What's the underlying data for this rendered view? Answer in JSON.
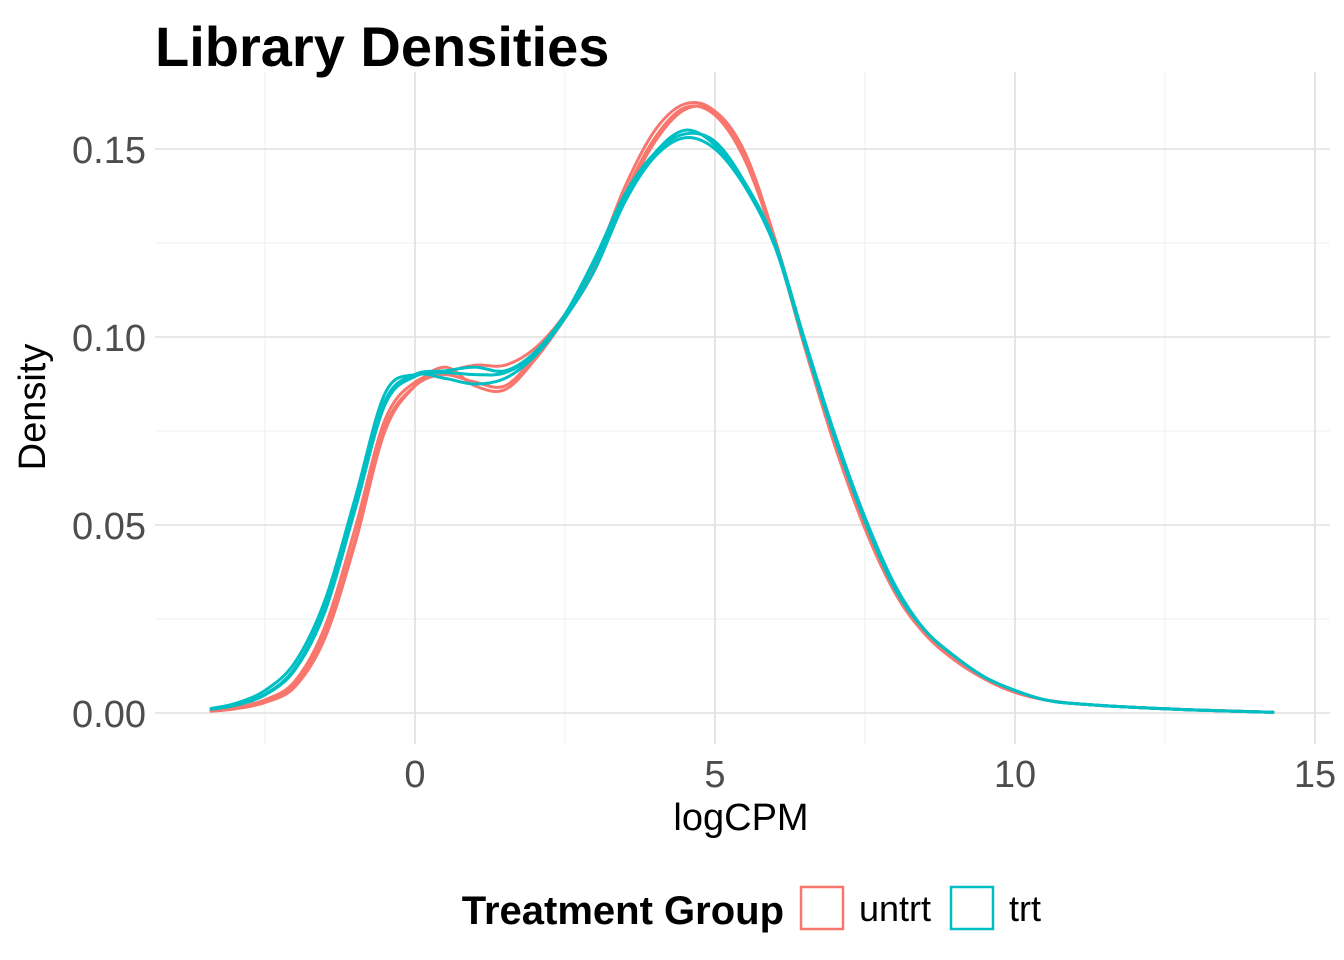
{
  "chart_data": {
    "type": "line",
    "title": "Library Densities",
    "xlabel": "logCPM",
    "ylabel": "Density",
    "xlim": [
      -3.5,
      15
    ],
    "ylim": [
      0,
      0.165
    ],
    "x_ticks": [
      0,
      5,
      10,
      15
    ],
    "x_tick_labels": [
      "0",
      "5",
      "10",
      "15"
    ],
    "y_ticks": [
      0.0,
      0.05,
      0.1,
      0.15
    ],
    "y_tick_labels": [
      "0.00",
      "0.05",
      "0.10",
      "0.15"
    ],
    "grid": true,
    "legend": {
      "title": "Treatment Group",
      "position": "bottom",
      "entries": [
        {
          "label": "untrt",
          "color": "#F8766D"
        },
        {
          "label": "trt",
          "color": "#00BFC4"
        }
      ]
    },
    "series": [
      {
        "group": "untrt",
        "color": "#F8766D",
        "x": [
          -3.4,
          -3,
          -2.5,
          -2,
          -1.5,
          -1,
          -0.5,
          0,
          0.5,
          1,
          1.5,
          2,
          2.5,
          3,
          3.5,
          4,
          4.5,
          5,
          5.5,
          6,
          6.5,
          7,
          7.5,
          8,
          8.5,
          9,
          9.5,
          10,
          10.5,
          11,
          12,
          13,
          14.3
        ],
        "y": [
          0.0005,
          0.0012,
          0.003,
          0.0075,
          0.021,
          0.046,
          0.076,
          0.087,
          0.0905,
          0.0925,
          0.0925,
          0.097,
          0.106,
          0.119,
          0.137,
          0.152,
          0.1605,
          0.16,
          0.149,
          0.126,
          0.098,
          0.072,
          0.05,
          0.032,
          0.021,
          0.014,
          0.009,
          0.0055,
          0.0035,
          0.0025,
          0.0015,
          0.0008,
          0.0002
        ]
      },
      {
        "group": "untrt",
        "color": "#F8766D",
        "x": [
          -3.4,
          -3,
          -2.5,
          -2,
          -1.5,
          -1,
          -0.5,
          0,
          0.5,
          1,
          1.5,
          2,
          2.5,
          3,
          3.5,
          4,
          4.5,
          5,
          5.5,
          6,
          6.5,
          7,
          7.5,
          8,
          8.5,
          9,
          9.5,
          10,
          10.5,
          11,
          12,
          13,
          14.3
        ],
        "y": [
          0.0006,
          0.0014,
          0.0035,
          0.0085,
          0.023,
          0.049,
          0.078,
          0.088,
          0.09,
          0.088,
          0.087,
          0.095,
          0.106,
          0.12,
          0.14,
          0.155,
          0.162,
          0.16,
          0.148,
          0.126,
          0.098,
          0.071,
          0.05,
          0.032,
          0.021,
          0.014,
          0.009,
          0.0055,
          0.0035,
          0.0025,
          0.0015,
          0.0008,
          0.0002
        ]
      },
      {
        "group": "untrt",
        "color": "#F8766D",
        "x": [
          -3.4,
          -3,
          -2.5,
          -2,
          -1.5,
          -1,
          -0.5,
          0,
          0.5,
          1,
          1.5,
          2,
          2.5,
          3,
          3.5,
          4,
          4.5,
          5,
          5.5,
          6,
          6.5,
          7,
          7.5,
          8,
          8.5,
          9,
          9.5,
          10,
          10.5,
          11,
          12,
          13,
          14.3
        ],
        "y": [
          0.0005,
          0.0011,
          0.0028,
          0.007,
          0.02,
          0.045,
          0.075,
          0.087,
          0.092,
          0.087,
          0.086,
          0.094,
          0.105,
          0.118,
          0.138,
          0.153,
          0.161,
          0.159,
          0.147,
          0.125,
          0.097,
          0.071,
          0.049,
          0.032,
          0.021,
          0.014,
          0.009,
          0.0055,
          0.0035,
          0.0025,
          0.0015,
          0.0008,
          0.0002
        ]
      },
      {
        "group": "trt",
        "color": "#00BFC4",
        "x": [
          -3.4,
          -3,
          -2.5,
          -2,
          -1.5,
          -1,
          -0.5,
          0,
          0.5,
          1,
          1.5,
          2,
          2.5,
          3,
          3.5,
          4,
          4.5,
          5,
          5.5,
          6,
          6.5,
          7,
          7.5,
          8,
          8.5,
          9,
          9.5,
          10,
          10.5,
          11,
          12,
          13,
          14.3
        ],
        "y": [
          0.001,
          0.0022,
          0.005,
          0.012,
          0.028,
          0.055,
          0.083,
          0.09,
          0.091,
          0.092,
          0.091,
          0.096,
          0.106,
          0.12,
          0.137,
          0.149,
          0.155,
          0.151,
          0.14,
          0.124,
          0.098,
          0.073,
          0.051,
          0.033,
          0.022,
          0.015,
          0.0095,
          0.006,
          0.0035,
          0.0025,
          0.0015,
          0.0008,
          0.0002
        ]
      },
      {
        "group": "trt",
        "color": "#00BFC4",
        "x": [
          -3.4,
          -3,
          -2.5,
          -2,
          -1.5,
          -1,
          -0.5,
          0,
          0.5,
          1,
          1.5,
          2,
          2.5,
          3,
          3.5,
          4,
          4.5,
          5,
          5.5,
          6,
          6.5,
          7,
          7.5,
          8,
          8.5,
          9,
          9.5,
          10,
          10.5,
          11,
          12,
          13,
          14.3
        ],
        "y": [
          0.0012,
          0.0025,
          0.006,
          0.0135,
          0.03,
          0.057,
          0.085,
          0.09,
          0.089,
          0.0875,
          0.089,
          0.095,
          0.105,
          0.118,
          0.136,
          0.148,
          0.153,
          0.15,
          0.14,
          0.125,
          0.099,
          0.074,
          0.052,
          0.034,
          0.022,
          0.015,
          0.0095,
          0.006,
          0.0035,
          0.0025,
          0.0015,
          0.0008,
          0.0002
        ]
      },
      {
        "group": "trt",
        "color": "#00BFC4",
        "x": [
          -3.4,
          -3,
          -2.5,
          -2,
          -1.5,
          -1,
          -0.5,
          0,
          0.5,
          1,
          1.5,
          2,
          2.5,
          3,
          3.5,
          4,
          4.5,
          5,
          5.5,
          6,
          6.5,
          7,
          7.5,
          8,
          8.5,
          9,
          9.5,
          10,
          10.5,
          11,
          12,
          13,
          14.3
        ],
        "y": [
          0.001,
          0.002,
          0.0048,
          0.0115,
          0.027,
          0.054,
          0.082,
          0.0895,
          0.0905,
          0.09,
          0.0905,
          0.0955,
          0.106,
          0.121,
          0.138,
          0.149,
          0.154,
          0.152,
          0.141,
          0.125,
          0.098,
          0.073,
          0.051,
          0.033,
          0.022,
          0.015,
          0.0095,
          0.006,
          0.0035,
          0.0025,
          0.0015,
          0.0008,
          0.0002
        ]
      }
    ]
  }
}
